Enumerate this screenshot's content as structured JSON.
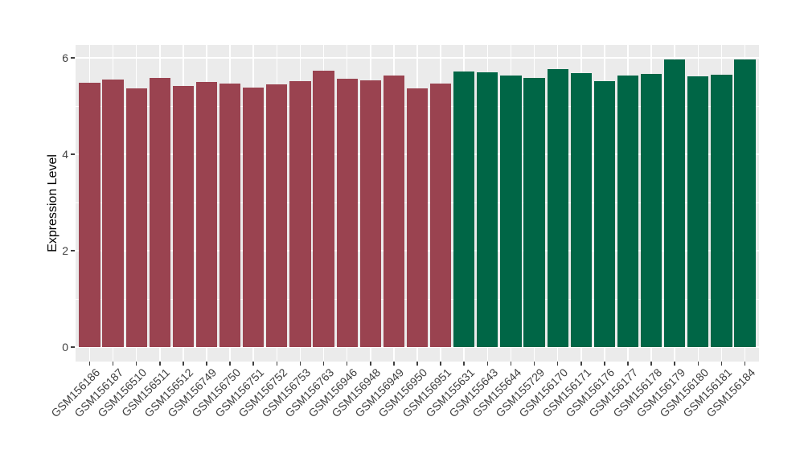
{
  "chart_data": {
    "type": "bar",
    "title": "",
    "xlabel": "",
    "ylabel": "Expression Level",
    "yticks": [
      0,
      2,
      4,
      6
    ],
    "minor_grid_values": [
      1,
      3,
      5
    ],
    "ylim": [
      0,
      6.26
    ],
    "grid": true,
    "legend": "none",
    "panel_background": "#EBEBEB",
    "grid_color": "#FFFFFF",
    "axis_text_color": "#404040",
    "group_colors": {
      "maroon": "#9A4350",
      "green": "#006646"
    },
    "categories": [
      "GSM156186",
      "GSM156187",
      "GSM156510",
      "GSM156511",
      "GSM156512",
      "GSM156749",
      "GSM156750",
      "GSM156751",
      "GSM156752",
      "GSM156753",
      "GSM156763",
      "GSM156946",
      "GSM156948",
      "GSM156949",
      "GSM156950",
      "GSM156951",
      "GSM155631",
      "GSM155643",
      "GSM155644",
      "GSM155729",
      "GSM156170",
      "GSM156171",
      "GSM156176",
      "GSM156177",
      "GSM156178",
      "GSM156179",
      "GSM156180",
      "GSM156181",
      "GSM156184"
    ],
    "values": [
      5.49,
      5.55,
      5.37,
      5.58,
      5.42,
      5.5,
      5.46,
      5.39,
      5.45,
      5.51,
      5.73,
      5.57,
      5.53,
      5.64,
      5.36,
      5.47,
      5.72,
      5.7,
      5.64,
      5.58,
      5.76,
      5.69,
      5.52,
      5.63,
      5.67,
      5.96,
      5.62,
      5.65,
      5.96
    ],
    "bar_groups": [
      "maroon",
      "maroon",
      "maroon",
      "maroon",
      "maroon",
      "maroon",
      "maroon",
      "maroon",
      "maroon",
      "maroon",
      "maroon",
      "maroon",
      "maroon",
      "maroon",
      "maroon",
      "maroon",
      "green",
      "green",
      "green",
      "green",
      "green",
      "green",
      "green",
      "green",
      "green",
      "green",
      "green",
      "green",
      "green"
    ]
  }
}
